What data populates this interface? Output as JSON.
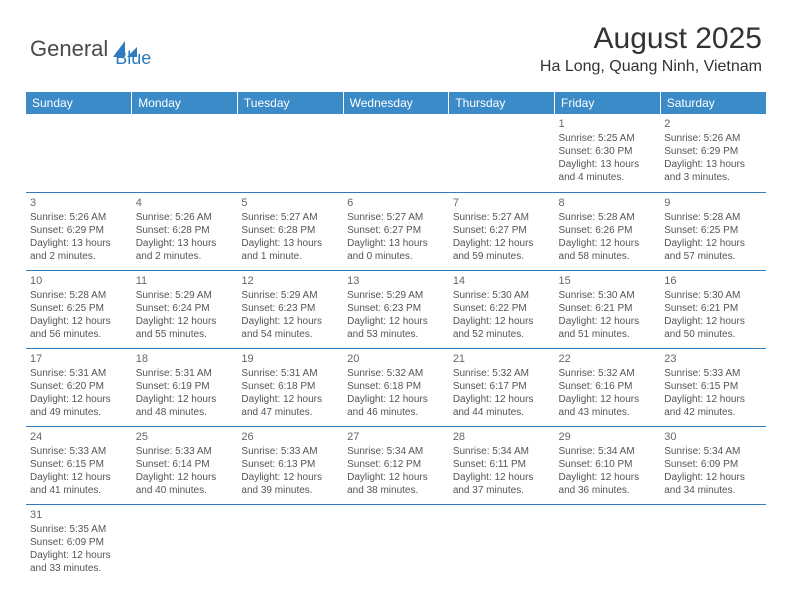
{
  "brand": {
    "part1": "General",
    "part2": "Blue"
  },
  "title": "August 2025",
  "location": "Ha Long, Quang Ninh, Vietnam",
  "colors": {
    "header_bg": "#3b8bc8",
    "border": "#2f7bbf",
    "text": "#555555",
    "title": "#333333"
  },
  "day_headers": [
    "Sunday",
    "Monday",
    "Tuesday",
    "Wednesday",
    "Thursday",
    "Friday",
    "Saturday"
  ],
  "weeks": [
    [
      null,
      null,
      null,
      null,
      null,
      {
        "n": "1",
        "sr": "Sunrise: 5:25 AM",
        "ss": "Sunset: 6:30 PM",
        "d1": "Daylight: 13 hours",
        "d2": "and 4 minutes."
      },
      {
        "n": "2",
        "sr": "Sunrise: 5:26 AM",
        "ss": "Sunset: 6:29 PM",
        "d1": "Daylight: 13 hours",
        "d2": "and 3 minutes."
      }
    ],
    [
      {
        "n": "3",
        "sr": "Sunrise: 5:26 AM",
        "ss": "Sunset: 6:29 PM",
        "d1": "Daylight: 13 hours",
        "d2": "and 2 minutes."
      },
      {
        "n": "4",
        "sr": "Sunrise: 5:26 AM",
        "ss": "Sunset: 6:28 PM",
        "d1": "Daylight: 13 hours",
        "d2": "and 2 minutes."
      },
      {
        "n": "5",
        "sr": "Sunrise: 5:27 AM",
        "ss": "Sunset: 6:28 PM",
        "d1": "Daylight: 13 hours",
        "d2": "and 1 minute."
      },
      {
        "n": "6",
        "sr": "Sunrise: 5:27 AM",
        "ss": "Sunset: 6:27 PM",
        "d1": "Daylight: 13 hours",
        "d2": "and 0 minutes."
      },
      {
        "n": "7",
        "sr": "Sunrise: 5:27 AM",
        "ss": "Sunset: 6:27 PM",
        "d1": "Daylight: 12 hours",
        "d2": "and 59 minutes."
      },
      {
        "n": "8",
        "sr": "Sunrise: 5:28 AM",
        "ss": "Sunset: 6:26 PM",
        "d1": "Daylight: 12 hours",
        "d2": "and 58 minutes."
      },
      {
        "n": "9",
        "sr": "Sunrise: 5:28 AM",
        "ss": "Sunset: 6:25 PM",
        "d1": "Daylight: 12 hours",
        "d2": "and 57 minutes."
      }
    ],
    [
      {
        "n": "10",
        "sr": "Sunrise: 5:28 AM",
        "ss": "Sunset: 6:25 PM",
        "d1": "Daylight: 12 hours",
        "d2": "and 56 minutes."
      },
      {
        "n": "11",
        "sr": "Sunrise: 5:29 AM",
        "ss": "Sunset: 6:24 PM",
        "d1": "Daylight: 12 hours",
        "d2": "and 55 minutes."
      },
      {
        "n": "12",
        "sr": "Sunrise: 5:29 AM",
        "ss": "Sunset: 6:23 PM",
        "d1": "Daylight: 12 hours",
        "d2": "and 54 minutes."
      },
      {
        "n": "13",
        "sr": "Sunrise: 5:29 AM",
        "ss": "Sunset: 6:23 PM",
        "d1": "Daylight: 12 hours",
        "d2": "and 53 minutes."
      },
      {
        "n": "14",
        "sr": "Sunrise: 5:30 AM",
        "ss": "Sunset: 6:22 PM",
        "d1": "Daylight: 12 hours",
        "d2": "and 52 minutes."
      },
      {
        "n": "15",
        "sr": "Sunrise: 5:30 AM",
        "ss": "Sunset: 6:21 PM",
        "d1": "Daylight: 12 hours",
        "d2": "and 51 minutes."
      },
      {
        "n": "16",
        "sr": "Sunrise: 5:30 AM",
        "ss": "Sunset: 6:21 PM",
        "d1": "Daylight: 12 hours",
        "d2": "and 50 minutes."
      }
    ],
    [
      {
        "n": "17",
        "sr": "Sunrise: 5:31 AM",
        "ss": "Sunset: 6:20 PM",
        "d1": "Daylight: 12 hours",
        "d2": "and 49 minutes."
      },
      {
        "n": "18",
        "sr": "Sunrise: 5:31 AM",
        "ss": "Sunset: 6:19 PM",
        "d1": "Daylight: 12 hours",
        "d2": "and 48 minutes."
      },
      {
        "n": "19",
        "sr": "Sunrise: 5:31 AM",
        "ss": "Sunset: 6:18 PM",
        "d1": "Daylight: 12 hours",
        "d2": "and 47 minutes."
      },
      {
        "n": "20",
        "sr": "Sunrise: 5:32 AM",
        "ss": "Sunset: 6:18 PM",
        "d1": "Daylight: 12 hours",
        "d2": "and 46 minutes."
      },
      {
        "n": "21",
        "sr": "Sunrise: 5:32 AM",
        "ss": "Sunset: 6:17 PM",
        "d1": "Daylight: 12 hours",
        "d2": "and 44 minutes."
      },
      {
        "n": "22",
        "sr": "Sunrise: 5:32 AM",
        "ss": "Sunset: 6:16 PM",
        "d1": "Daylight: 12 hours",
        "d2": "and 43 minutes."
      },
      {
        "n": "23",
        "sr": "Sunrise: 5:33 AM",
        "ss": "Sunset: 6:15 PM",
        "d1": "Daylight: 12 hours",
        "d2": "and 42 minutes."
      }
    ],
    [
      {
        "n": "24",
        "sr": "Sunrise: 5:33 AM",
        "ss": "Sunset: 6:15 PM",
        "d1": "Daylight: 12 hours",
        "d2": "and 41 minutes."
      },
      {
        "n": "25",
        "sr": "Sunrise: 5:33 AM",
        "ss": "Sunset: 6:14 PM",
        "d1": "Daylight: 12 hours",
        "d2": "and 40 minutes."
      },
      {
        "n": "26",
        "sr": "Sunrise: 5:33 AM",
        "ss": "Sunset: 6:13 PM",
        "d1": "Daylight: 12 hours",
        "d2": "and 39 minutes."
      },
      {
        "n": "27",
        "sr": "Sunrise: 5:34 AM",
        "ss": "Sunset: 6:12 PM",
        "d1": "Daylight: 12 hours",
        "d2": "and 38 minutes."
      },
      {
        "n": "28",
        "sr": "Sunrise: 5:34 AM",
        "ss": "Sunset: 6:11 PM",
        "d1": "Daylight: 12 hours",
        "d2": "and 37 minutes."
      },
      {
        "n": "29",
        "sr": "Sunrise: 5:34 AM",
        "ss": "Sunset: 6:10 PM",
        "d1": "Daylight: 12 hours",
        "d2": "and 36 minutes."
      },
      {
        "n": "30",
        "sr": "Sunrise: 5:34 AM",
        "ss": "Sunset: 6:09 PM",
        "d1": "Daylight: 12 hours",
        "d2": "and 34 minutes."
      }
    ],
    [
      {
        "n": "31",
        "sr": "Sunrise: 5:35 AM",
        "ss": "Sunset: 6:09 PM",
        "d1": "Daylight: 12 hours",
        "d2": "and 33 minutes."
      },
      null,
      null,
      null,
      null,
      null,
      null
    ]
  ]
}
